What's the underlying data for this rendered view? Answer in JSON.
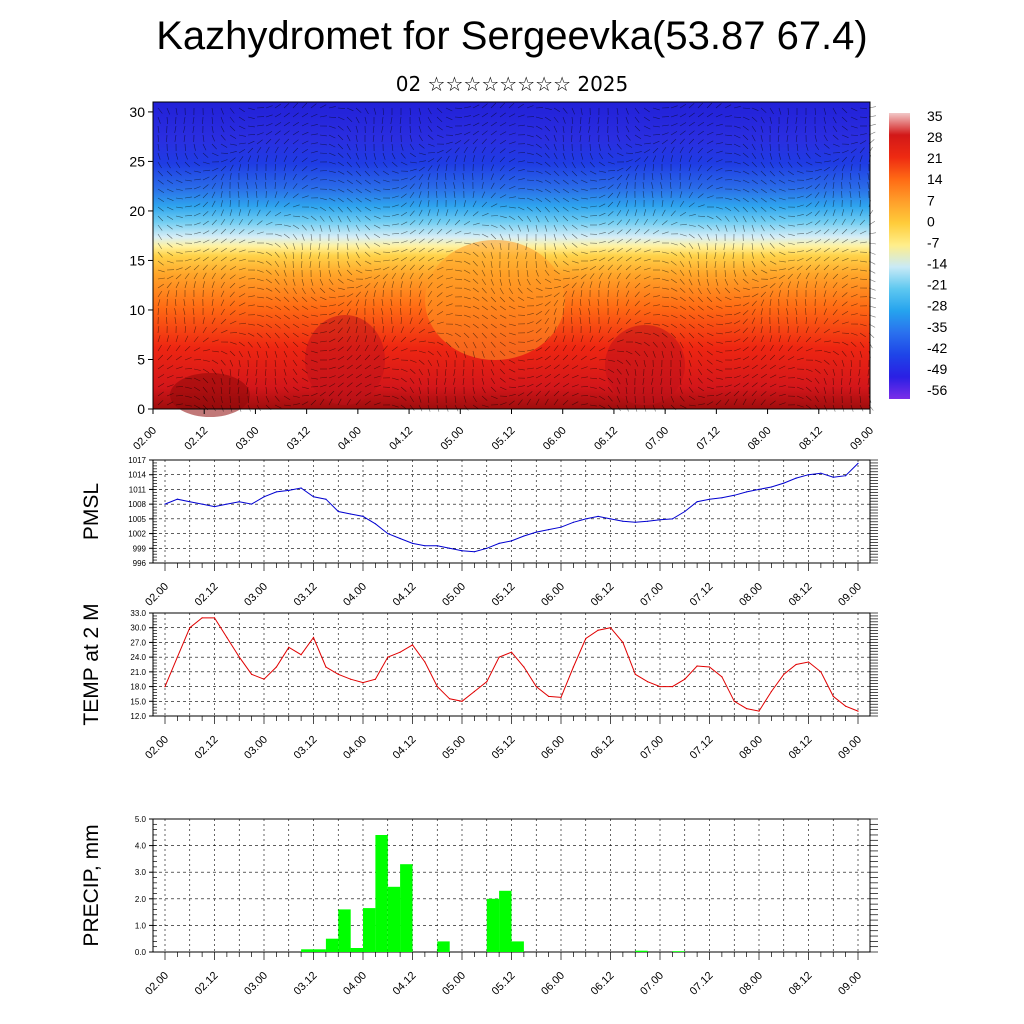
{
  "title": "Kazhydromet for Sergeevka(53.87 67.4)",
  "subtitle": "02 ☆☆☆☆☆☆☆☆ 2025",
  "time_ticks": [
    "02.00",
    "02.12",
    "03.00",
    "03.12",
    "04.00",
    "04.12",
    "05.00",
    "05.12",
    "06.00",
    "06.12",
    "07.00",
    "07.12",
    "08.00",
    "08.12",
    "09.00"
  ],
  "chart_data": [
    {
      "type": "heatmap",
      "name": "cross-section",
      "y_ticks": [
        "0",
        "5",
        "10",
        "15",
        "20",
        "25",
        "30"
      ],
      "ylim": [
        0,
        31
      ],
      "colorbar": {
        "labels": [
          "35",
          "28",
          "21",
          "14",
          "7",
          "0",
          "-7",
          "-14",
          "-21",
          "-28",
          "-35",
          "-42",
          "-49",
          "-56"
        ],
        "colors": [
          "#f2c8c8",
          "#d21818",
          "#ee2a12",
          "#ff6a14",
          "#ff9e2a",
          "#ffcc3a",
          "#ffee8a",
          "#c9eaf6",
          "#5ec8f0",
          "#25a3ee",
          "#2a70ee",
          "#1e44e8",
          "#2a1fe4",
          "#7a2ee8"
        ]
      }
    },
    {
      "type": "line",
      "ylabel": "PMSL",
      "color": "#0000d0",
      "ylim": [
        996,
        1017
      ],
      "y_ticks": [
        "1017",
        "1014",
        "1011",
        "1008",
        "1005",
        "1002",
        "999",
        "996"
      ],
      "x": [
        0,
        3,
        6,
        9,
        12,
        15,
        18,
        21,
        24,
        27,
        30,
        33,
        36,
        39,
        42,
        45,
        48,
        51,
        54,
        57,
        60,
        63,
        66,
        69,
        72,
        75,
        78,
        81,
        84,
        87,
        90,
        93,
        96,
        99,
        102,
        105,
        108,
        111,
        114,
        117,
        120,
        123,
        126,
        129,
        132,
        135,
        138,
        141,
        144,
        147,
        150,
        153,
        156,
        159,
        162,
        165,
        168
      ],
      "values": [
        1008,
        1009,
        1008.5,
        1008,
        1007.5,
        1008,
        1008.5,
        1008,
        1009.5,
        1010.5,
        1010.8,
        1011.3,
        1009.5,
        1009,
        1006.5,
        1006,
        1005.5,
        1004,
        1002,
        1001,
        1000,
        999.5,
        999.5,
        999,
        998.5,
        998.3,
        999,
        1000,
        1000.5,
        1001.5,
        1002.3,
        1002.8,
        1003.3,
        1004.3,
        1005,
        1005.5,
        1005,
        1004.5,
        1004.3,
        1004.5,
        1004.8,
        1005,
        1006.5,
        1008.5,
        1009,
        1009.3,
        1009.8,
        1010.5,
        1011,
        1011.5,
        1012.3,
        1013.3,
        1014,
        1014.3,
        1013.5,
        1013.8,
        1016.3
      ]
    },
    {
      "type": "line",
      "ylabel": "TEMP at 2 M",
      "color": "#e00000",
      "ylim": [
        12,
        33
      ],
      "y_ticks": [
        "33.0",
        "30.0",
        "27.0",
        "24.0",
        "21.0",
        "18.0",
        "15.0",
        "12.0"
      ],
      "x": [
        0,
        3,
        6,
        9,
        12,
        15,
        18,
        21,
        24,
        27,
        30,
        33,
        36,
        39,
        42,
        45,
        48,
        51,
        54,
        57,
        60,
        63,
        66,
        69,
        72,
        75,
        78,
        81,
        84,
        87,
        90,
        93,
        96,
        99,
        102,
        105,
        108,
        111,
        114,
        117,
        120,
        123,
        126,
        129,
        132,
        135,
        138,
        141,
        144,
        147,
        150,
        153,
        156,
        159,
        162,
        165,
        168
      ],
      "values": [
        18,
        24,
        30,
        32,
        32,
        28,
        24,
        20.5,
        19.5,
        22,
        26,
        24.5,
        28,
        22,
        20.5,
        19.5,
        18.8,
        19.5,
        24,
        25,
        26.5,
        23,
        18,
        15.5,
        15,
        17,
        19,
        24,
        25,
        22,
        18,
        16,
        15.8,
        22,
        27.8,
        29.5,
        30,
        27,
        20.5,
        19,
        18,
        18,
        19.5,
        22.2,
        22,
        20,
        15,
        13.5,
        13,
        17,
        20.5,
        22.5,
        23,
        21,
        16,
        14,
        13
      ]
    },
    {
      "type": "bar",
      "ylabel": "PRECIP, mm",
      "color": "#00ff00",
      "ylim": [
        0,
        5
      ],
      "y_ticks": [
        "5.0",
        "4.0",
        "3.0",
        "2.0",
        "1.0",
        "0.0"
      ],
      "x": [
        33,
        36,
        39,
        42,
        45,
        48,
        51,
        54,
        57,
        60,
        66,
        78,
        81,
        84,
        87,
        114,
        123
      ],
      "values": [
        0.1,
        0.1,
        0.5,
        1.6,
        0.15,
        1.65,
        4.4,
        2.45,
        3.3,
        0,
        0.4,
        2.0,
        2.3,
        0.4,
        0,
        0.05,
        0.03
      ]
    }
  ]
}
